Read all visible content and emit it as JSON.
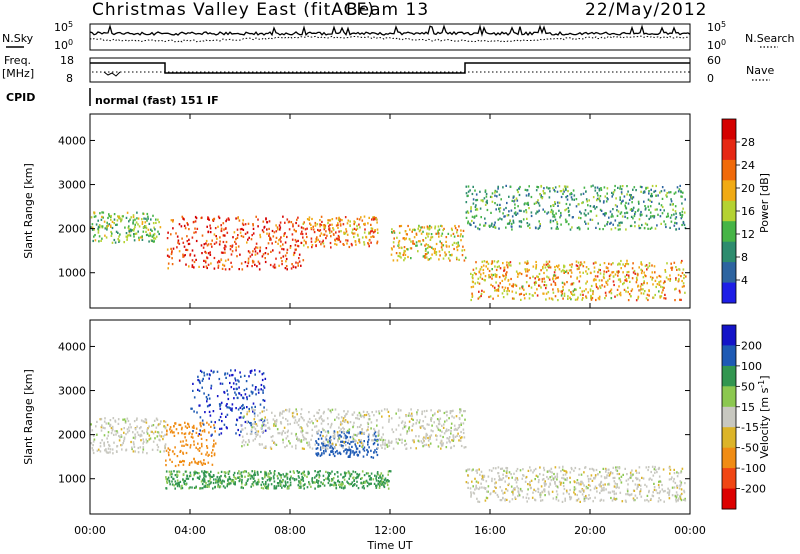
{
  "header": {
    "station": "Christmas Valley East (fitACF)",
    "beam": "Beam 13",
    "date": "22/May/2012"
  },
  "panels": {
    "nsky": {
      "label": "N.Sky",
      "tick_top": "10^5",
      "tick_bottom": "10^0",
      "right_tick_top": "10^5",
      "right_tick_bottom": "10^0",
      "right_label": "N.Search"
    },
    "freq": {
      "label_line1": "Freq.",
      "label_line2": "[MHz]",
      "ticks_left": [
        "18",
        "8"
      ],
      "ticks_right": [
        "60",
        "0"
      ],
      "right_label": "Nave"
    },
    "cpid": {
      "label": "CPID",
      "text": "normal (fast) 151 IF"
    }
  },
  "colors": {
    "power": [
      "#1e1ee6",
      "#2d64a0",
      "#2d8c6e",
      "#46b446",
      "#b4d232",
      "#f0aa14",
      "#f06a0a",
      "#e62814",
      "#d40000"
    ],
    "velocity": [
      "#1414c8",
      "#1e5ab4",
      "#329650",
      "#8cc850",
      "#c8c8c0",
      "#dcb428",
      "#f08c14",
      "#f04614",
      "#dc0000"
    ]
  },
  "chart_data": [
    {
      "type": "heatmap",
      "xlabel": "",
      "ylabel": "Slant Range [km]",
      "x_ticks": [
        "00:00",
        "04:00",
        "08:00",
        "12:00",
        "16:00",
        "20:00",
        "00:00"
      ],
      "y_ticks": [
        1000,
        2000,
        3000,
        4000
      ],
      "ylim": [
        200,
        4600
      ],
      "colorbar": {
        "label": "Power [dB]",
        "ticks": [
          4,
          8,
          12,
          16,
          20,
          24,
          28
        ],
        "range": [
          0,
          32
        ]
      },
      "bands": [
        {
          "t": [
            0.0,
            2.8
          ],
          "range_km": [
            1700,
            2400
          ],
          "power_db": 14
        },
        {
          "t": [
            3.0,
            8.5
          ],
          "range_km": [
            1100,
            2300
          ],
          "power_db": 26
        },
        {
          "t": [
            8.5,
            11.5
          ],
          "range_km": [
            1600,
            2300
          ],
          "power_db": 22
        },
        {
          "t": [
            12.0,
            15.0
          ],
          "range_km": [
            1300,
            2100
          ],
          "power_db": 18
        },
        {
          "t": [
            15.2,
            23.8
          ],
          "range_km": [
            400,
            1300
          ],
          "power_db": 20
        },
        {
          "t": [
            15.0,
            23.8
          ],
          "range_km": [
            2000,
            3000
          ],
          "power_db": 10
        }
      ]
    },
    {
      "type": "heatmap",
      "xlabel": "Time UT",
      "ylabel": "Slant Range [km]",
      "x_ticks": [
        "00:00",
        "04:00",
        "08:00",
        "12:00",
        "16:00",
        "20:00",
        "00:00"
      ],
      "y_ticks": [
        1000,
        2000,
        3000,
        4000
      ],
      "ylim": [
        200,
        4600
      ],
      "colorbar": {
        "label": "Velocity [m s^-1]",
        "ticks": [
          200,
          100,
          50,
          15,
          -15,
          -50,
          -100,
          -200
        ]
      },
      "bands": [
        {
          "t": [
            0.0,
            3.0
          ],
          "range_km": [
            1600,
            2400
          ],
          "velocity": 0
        },
        {
          "t": [
            3.0,
            5.0
          ],
          "range_km": [
            1300,
            2300
          ],
          "velocity": -80
        },
        {
          "t": [
            4.0,
            7.0
          ],
          "range_km": [
            2000,
            3500
          ],
          "velocity": 200
        },
        {
          "t": [
            9.0,
            11.5
          ],
          "range_km": [
            1500,
            2100
          ],
          "velocity": 120
        },
        {
          "t": [
            6.0,
            15.0
          ],
          "range_km": [
            1700,
            2600
          ],
          "velocity": 0
        },
        {
          "t": [
            15.0,
            23.8
          ],
          "range_km": [
            500,
            1300
          ],
          "velocity": 0
        },
        {
          "t": [
            3.0,
            12.0
          ],
          "range_km": [
            800,
            1200
          ],
          "velocity": 60
        }
      ]
    }
  ]
}
